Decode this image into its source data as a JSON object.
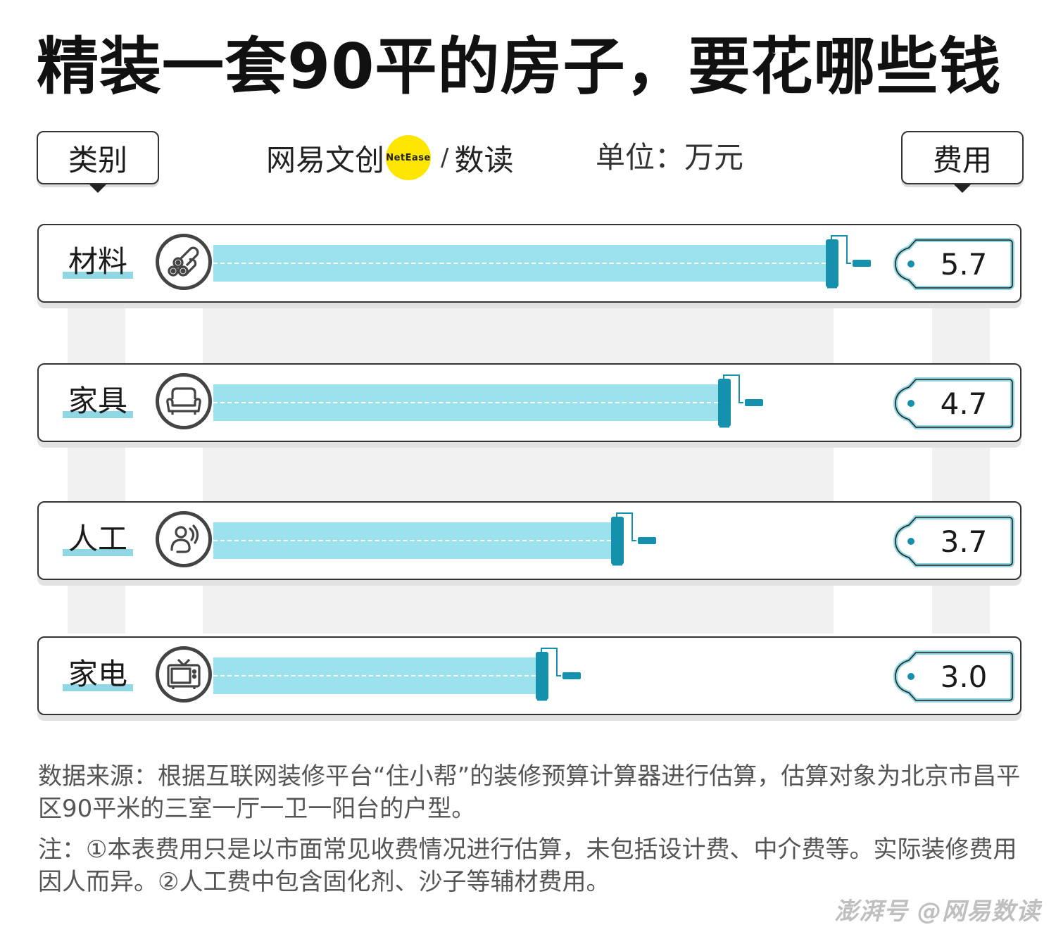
{
  "title": "精装一套90平的房子，要花哪些钱",
  "header": {
    "category_label": "类别",
    "cost_label": "费用",
    "logo_text": "网易文创",
    "logo_badge": "NetEase",
    "logo_slash": "/",
    "logo_sub": "数读",
    "unit": "单位：万元"
  },
  "chart_data": {
    "type": "bar",
    "orientation": "horizontal",
    "unit": "万元",
    "categories": [
      "材料",
      "家具",
      "人工",
      "家电"
    ],
    "values": [
      5.7,
      4.7,
      3.7,
      3.0
    ],
    "value_labels": [
      "5.7",
      "4.7",
      "3.7",
      "3.0"
    ],
    "icons": [
      "pipes-icon",
      "sofa-icon",
      "worker-icon",
      "tv-icon"
    ],
    "xlim": [
      0,
      5.7
    ],
    "colors": {
      "bar": "#9be2ec",
      "roller": "#1591ad",
      "tag_border": "#8fd7e2"
    }
  },
  "notes": {
    "source": "数据来源：根据互联网装修平台“住小帮”的装修预算计算器进行估算，估算对象为北京市昌平区90平米的三室一厅一卫一阳台的户型。",
    "remark": "注：①本表费用只是以市面常见收费情况进行估算，未包括设计费、中介费等。实际装修费用因人而异。②人工费中包含固化剂、沙子等辅材费用。"
  },
  "watermark": "澎湃号 @网易数读"
}
